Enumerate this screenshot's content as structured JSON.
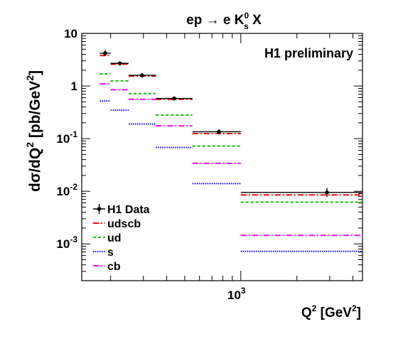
{
  "chart_data": {
    "type": "line",
    "title": "ep → e K",
    "title_sup": "0",
    "title_sub": "s",
    "title_suffix": " X",
    "ylabel": "dσ/dQ",
    "ylabel_sup": "2",
    "ylabel_unit": " [pb/GeV",
    "ylabel_unit_sup": "2",
    "ylabel_unit_end": "]",
    "xlabel": "Q",
    "xlabel_sup": "2",
    "xlabel_unit": " [GeV",
    "xlabel_unit_sup": "2",
    "xlabel_unit_end": "]",
    "annotation": "H1 preliminary",
    "x_scale": "log",
    "y_scale": "log",
    "xlim": [
      140,
      4500
    ],
    "ylim": [
      0.0002,
      10
    ],
    "x_tick_labels": [
      {
        "value": 1000,
        "base": "10",
        "exp": "3"
      }
    ],
    "y_tick_labels": [
      {
        "value": 10,
        "text": "10"
      },
      {
        "value": 1,
        "text": "1"
      },
      {
        "value": 0.1,
        "base": "10",
        "exp": "-1"
      },
      {
        "value": 0.01,
        "base": "10",
        "exp": "-2"
      },
      {
        "value": 0.001,
        "base": "10",
        "exp": "-3"
      }
    ],
    "bins": [
      [
        175,
        200
      ],
      [
        200,
        250
      ],
      [
        250,
        350
      ],
      [
        350,
        550
      ],
      [
        550,
        1000
      ],
      [
        1000,
        4500
      ]
    ],
    "data_points": {
      "name": "H1 Data",
      "x": [
        187,
        224,
        295,
        439,
        763,
        2900
      ],
      "y": [
        4.2,
        2.7,
        1.6,
        0.58,
        0.135,
        0.0095
      ],
      "y_err_low": [
        3.7,
        2.45,
        1.45,
        0.53,
        0.12,
        0.0078
      ],
      "y_err_high": [
        4.8,
        2.95,
        1.75,
        0.63,
        0.15,
        0.0115
      ]
    },
    "series": [
      {
        "name": "udscb",
        "values": [
          3.8,
          2.6,
          1.55,
          0.56,
          0.125,
          0.0085
        ],
        "color": "#ff0000",
        "dash": "8,3,2,3"
      },
      {
        "name": "ud",
        "values": [
          1.7,
          1.25,
          0.72,
          0.28,
          0.072,
          0.0062
        ],
        "color": "#00cc00",
        "dash": "4,3"
      },
      {
        "name": "s",
        "values": [
          0.52,
          0.35,
          0.19,
          0.068,
          0.014,
          0.00072
        ],
        "color": "#0000ff",
        "dash": "1.5,1.5"
      },
      {
        "name": "cb",
        "values": [
          1.1,
          0.85,
          0.56,
          0.175,
          0.034,
          0.00145
        ],
        "color": "#ff00ff",
        "dash": "8,3,2,3"
      }
    ],
    "legend_position": "bottom-left",
    "data_color": "#000000"
  }
}
